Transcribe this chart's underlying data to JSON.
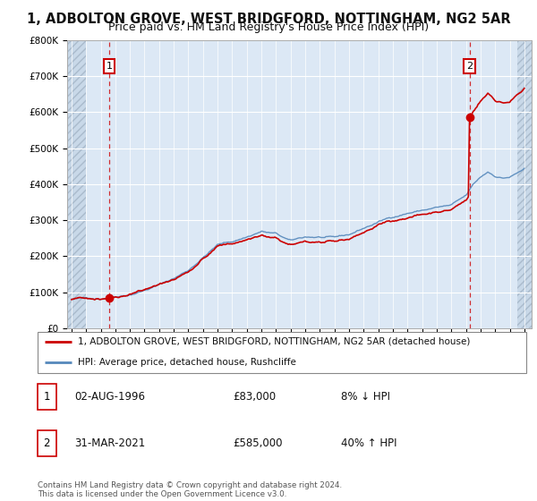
{
  "title": "1, ADBOLTON GROVE, WEST BRIDGFORD, NOTTINGHAM, NG2 5AR",
  "subtitle": "Price paid vs. HM Land Registry's House Price Index (HPI)",
  "ylim": [
    0,
    800000
  ],
  "yticks": [
    0,
    100000,
    200000,
    300000,
    400000,
    500000,
    600000,
    700000,
    800000
  ],
  "xlim_start": 1993.7,
  "xlim_end": 2025.5,
  "background_color": "#ffffff",
  "plot_bg_color": "#dce8f5",
  "grid_color": "#ffffff",
  "red_line_color": "#cc0000",
  "blue_line_color": "#5588bb",
  "point1_year": 1996.58,
  "point1_value": 83000,
  "point2_year": 2021.25,
  "point2_value": 585000,
  "legend_line1": "1, ADBOLTON GROVE, WEST BRIDGFORD, NOTTINGHAM, NG2 5AR (detached house)",
  "legend_line2": "HPI: Average price, detached house, Rushcliffe",
  "table_row1": [
    "1",
    "02-AUG-1996",
    "£83,000",
    "8% ↓ HPI"
  ],
  "table_row2": [
    "2",
    "31-MAR-2021",
    "£585,000",
    "40% ↑ HPI"
  ],
  "footer": "Contains HM Land Registry data © Crown copyright and database right 2024.\nThis data is licensed under the Open Government Licence v3.0.",
  "title_fontsize": 10.5,
  "subtitle_fontsize": 9,
  "tick_fontsize": 7.5
}
